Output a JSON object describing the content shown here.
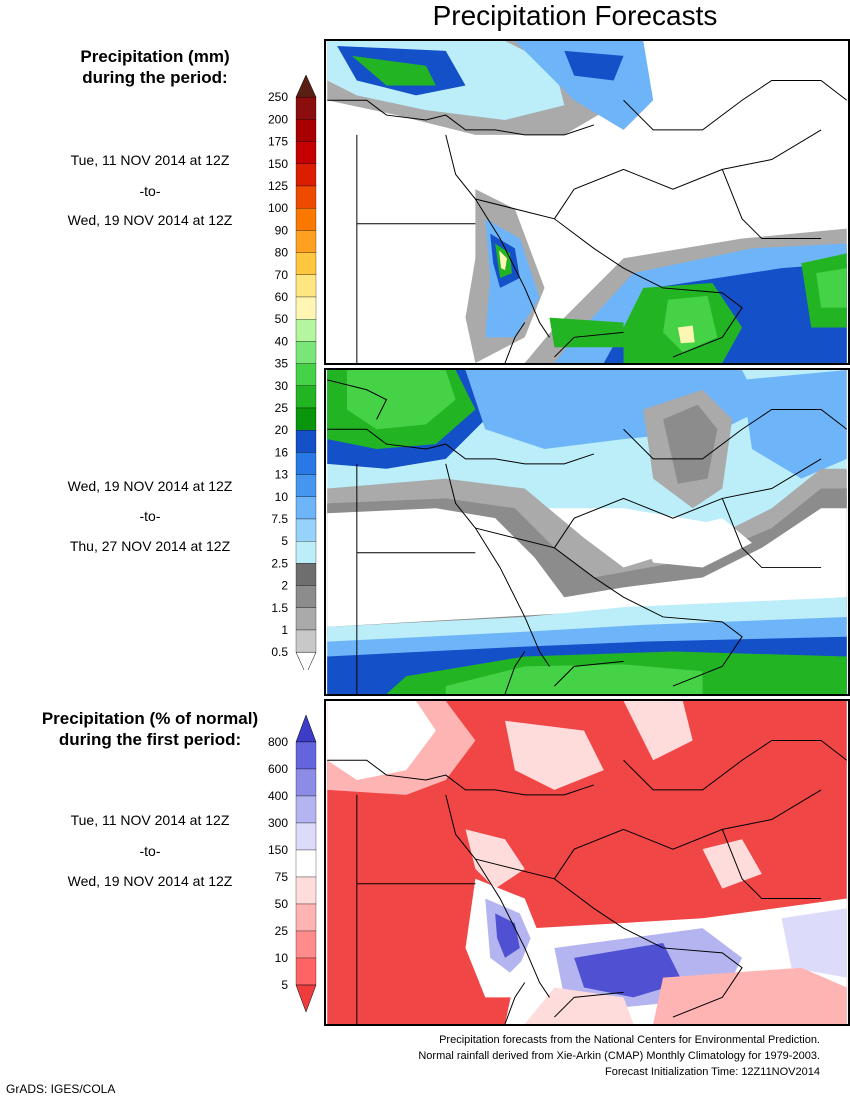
{
  "title": "Precipitation Forecasts",
  "legend1": {
    "heading_line1": "Precipitation (mm)",
    "heading_line2": "during the period:",
    "labels": [
      "250",
      "200",
      "175",
      "150",
      "125",
      "100",
      "90",
      "80",
      "70",
      "60",
      "50",
      "40",
      "35",
      "30",
      "25",
      "20",
      "16",
      "13",
      "10",
      "7.5",
      "5",
      "2.5",
      "2",
      "1.5",
      "1",
      "0.5"
    ],
    "colors": [
      "#5a1f14",
      "#8b0d0d",
      "#a80000",
      "#c40000",
      "#dc1e00",
      "#ee4b00",
      "#fb7800",
      "#ffa020",
      "#ffc640",
      "#ffe680",
      "#fff6b4",
      "#b4f5a0",
      "#78e678",
      "#46d246",
      "#23b423",
      "#0a960a",
      "#1450c8",
      "#2878e6",
      "#4696f0",
      "#6eb4f8",
      "#96d2fa",
      "#bceefa",
      "#6e6e6e",
      "#8c8c8c",
      "#aaaaaa",
      "#c8c8c8",
      "#ffffff"
    ]
  },
  "period1": {
    "start": "Tue, 11 NOV 2014 at 12Z",
    "sep": "-to-",
    "end": "Wed, 19 NOV 2014 at 12Z"
  },
  "period2": {
    "start": "Wed, 19 NOV 2014 at 12Z",
    "sep": "-to-",
    "end": "Thu, 27 NOV 2014 at 12Z"
  },
  "legend2": {
    "heading_line1": "Precipitation (% of normal)",
    "heading_line2": "during the first period:",
    "labels": [
      "800",
      "600",
      "400",
      "300",
      "150",
      "75",
      "50",
      "25",
      "10",
      "5"
    ],
    "colors": [
      "#3c3cc8",
      "#6464dc",
      "#8c8ce6",
      "#b4b4f0",
      "#dcdcfa",
      "#ffffff",
      "#ffdcdc",
      "#ffb4b4",
      "#ff8c8c",
      "#ff6464",
      "#f03c3c"
    ]
  },
  "period3": {
    "start": "Tue, 11 NOV 2014 at 12Z",
    "sep": "-to-",
    "end": "Wed, 19 NOV 2014 at 12Z"
  },
  "footer": {
    "line1": "Precipitation forecasts from the National Centers for Environmental Prediction.",
    "line2": "Normal rainfall derived from Xie-Arkin (CMAP) Monthly Climatology for 1979-2003.",
    "line3": "Forecast Initialization Time: 12Z11NOV2014"
  },
  "credit": "GrADS: IGES/COLA",
  "map_colors": {
    "light_gray": "#c8c8c8",
    "mid_gray": "#aaaaaa",
    "dark_gray": "#8c8c8c",
    "light_blue": "#bceefa",
    "blue": "#6eb4f8",
    "dark_blue": "#1450c8",
    "green": "#23b423",
    "light_green": "#46d246",
    "yellow": "#fff6b4",
    "red": "#f04646",
    "pink": "#ffb4b4",
    "lavender": "#b4b4f0",
    "purple": "#5050d2",
    "border": "#000000"
  }
}
